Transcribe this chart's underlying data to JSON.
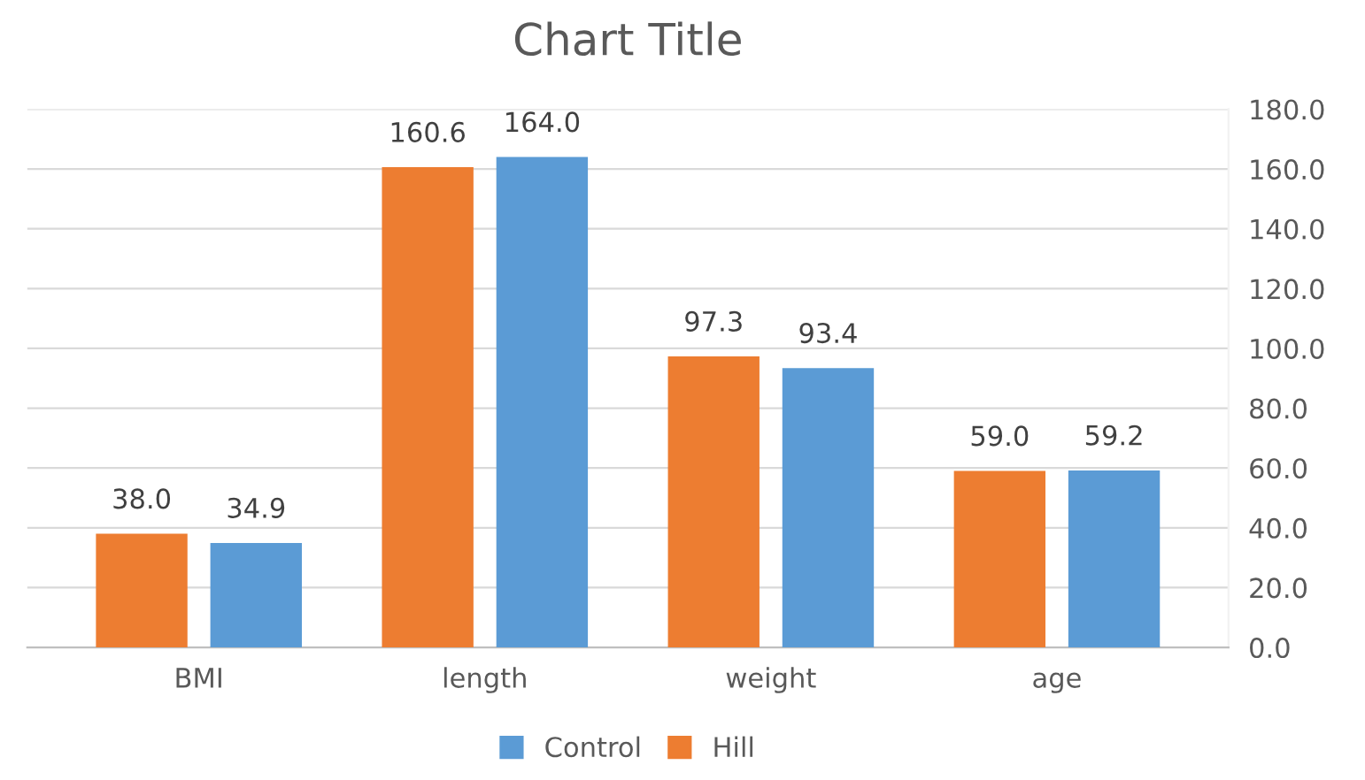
{
  "chart_data": {
    "type": "bar",
    "title": "Chart Title",
    "categories": [
      "BMI",
      "length",
      "weight",
      "age"
    ],
    "series": [
      {
        "name": "Hill",
        "color": "#ed7d31",
        "values": [
          38.0,
          160.6,
          97.3,
          59.0
        ],
        "value_labels": [
          "38.0",
          "160.6",
          "97.3",
          "59.0"
        ]
      },
      {
        "name": "Control",
        "color": "#5b9bd5",
        "values": [
          34.9,
          164.0,
          93.4,
          59.2
        ],
        "value_labels": [
          "34.9",
          "164.0",
          "93.4",
          "59.2"
        ]
      }
    ],
    "ylim": [
      0,
      180
    ],
    "yticks": [
      {
        "value": 0,
        "label": "0.0"
      },
      {
        "value": 20,
        "label": "20.0"
      },
      {
        "value": 40,
        "label": "40.0"
      },
      {
        "value": 60,
        "label": "60.0"
      },
      {
        "value": 80,
        "label": "80.0"
      },
      {
        "value": 100,
        "label": "100.0"
      },
      {
        "value": 120,
        "label": "120.0"
      },
      {
        "value": 140,
        "label": "140.0"
      },
      {
        "value": 160,
        "label": "160.0"
      },
      {
        "value": 180,
        "label": "180.0"
      }
    ],
    "grid": "y",
    "legend": "bottom"
  }
}
